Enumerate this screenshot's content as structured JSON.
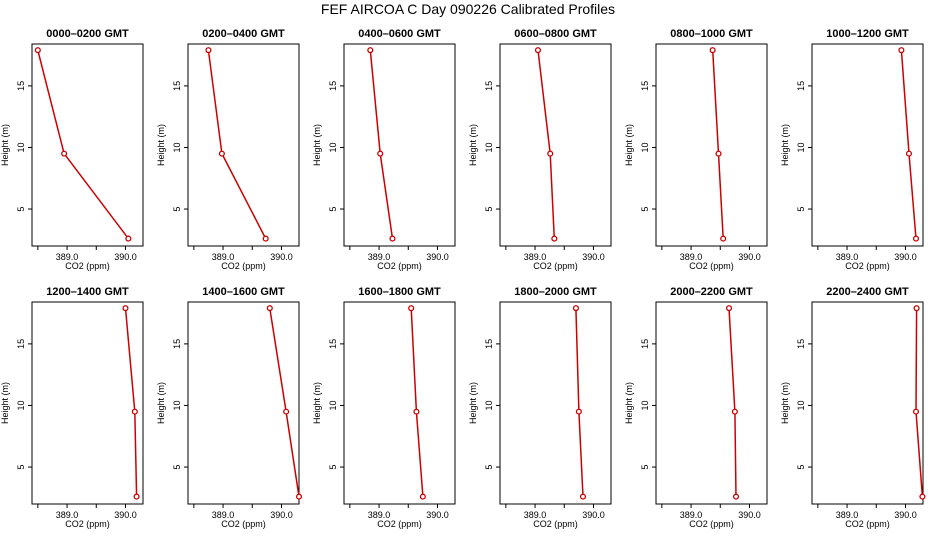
{
  "title": "FEF AIRCOA C  Day 090226  Calibrated Profiles",
  "chart_data": [
    {
      "type": "line",
      "title": "0000–0200 GMT",
      "xlabel": "CO2 (ppm)",
      "ylabel": "Height (m)",
      "xlim": [
        388.4,
        390.3
      ],
      "ylim": [
        2,
        18.4
      ],
      "xticks": [
        389.0,
        390.0
      ],
      "xtick_labels": [
        "389.0",
        "390.0"
      ],
      "xtick_minor": [
        388.5,
        389.5,
        390.5
      ],
      "yticks": [
        5,
        10,
        15
      ],
      "y": [
        17.9,
        9.5,
        2.6
      ],
      "x": [
        388.5,
        388.95,
        390.05
      ]
    },
    {
      "type": "line",
      "title": "0200–0400 GMT",
      "xlabel": "CO2 (ppm)",
      "ylabel": "Height (m)",
      "xlim": [
        388.4,
        390.3
      ],
      "ylim": [
        2,
        18.4
      ],
      "xticks": [
        389.0,
        390.0
      ],
      "xtick_labels": [
        "389.0",
        "390.0"
      ],
      "xtick_minor": [
        388.5,
        389.5,
        390.5
      ],
      "yticks": [
        5,
        10,
        15
      ],
      "y": [
        17.9,
        9.5,
        2.6
      ],
      "x": [
        388.75,
        388.98,
        389.73
      ]
    },
    {
      "type": "line",
      "title": "0400–0600 GMT",
      "xlabel": "CO2 (ppm)",
      "ylabel": "Height (m)",
      "xlim": [
        388.4,
        390.3
      ],
      "ylim": [
        2,
        18.4
      ],
      "xticks": [
        389.0,
        390.0
      ],
      "xtick_labels": [
        "389.0",
        "390.0"
      ],
      "xtick_minor": [
        388.5,
        389.5,
        390.5
      ],
      "yticks": [
        5,
        10,
        15
      ],
      "y": [
        17.9,
        9.5,
        2.6
      ],
      "x": [
        388.85,
        389.02,
        389.23
      ]
    },
    {
      "type": "line",
      "title": "0600–0800 GMT",
      "xlabel": "CO2 (ppm)",
      "ylabel": "Height (m)",
      "xlim": [
        388.4,
        390.3
      ],
      "ylim": [
        2,
        18.4
      ],
      "xticks": [
        389.0,
        390.0
      ],
      "xtick_labels": [
        "389.0",
        "390.0"
      ],
      "xtick_minor": [
        388.5,
        389.5,
        390.5
      ],
      "yticks": [
        5,
        10,
        15
      ],
      "y": [
        17.9,
        9.5,
        2.6
      ],
      "x": [
        389.05,
        389.26,
        389.33
      ]
    },
    {
      "type": "line",
      "title": "0800–1000 GMT",
      "xlabel": "CO2 (ppm)",
      "ylabel": "Height (m)",
      "xlim": [
        388.4,
        390.3
      ],
      "ylim": [
        2,
        18.4
      ],
      "xticks": [
        389.0,
        390.0
      ],
      "xtick_labels": [
        "389.0",
        "390.0"
      ],
      "xtick_minor": [
        388.5,
        389.5,
        390.5
      ],
      "yticks": [
        5,
        10,
        15
      ],
      "y": [
        17.9,
        9.5,
        2.6
      ],
      "x": [
        389.37,
        389.47,
        389.55
      ]
    },
    {
      "type": "line",
      "title": "1000–1200 GMT",
      "xlabel": "CO2 (ppm)",
      "ylabel": "Height (m)",
      "xlim": [
        388.4,
        390.3
      ],
      "ylim": [
        2,
        18.4
      ],
      "xticks": [
        389.0,
        390.0
      ],
      "xtick_labels": [
        "389.0",
        "390.0"
      ],
      "xtick_minor": [
        388.5,
        389.5,
        390.5
      ],
      "yticks": [
        5,
        10,
        15
      ],
      "y": [
        17.9,
        9.5,
        2.6
      ],
      "x": [
        389.93,
        390.06,
        390.18
      ]
    },
    {
      "type": "line",
      "title": "1200–1400 GMT",
      "xlabel": "CO2 (ppm)",
      "ylabel": "Height (m)",
      "xlim": [
        388.4,
        390.3
      ],
      "ylim": [
        2,
        18.4
      ],
      "xticks": [
        389.0,
        390.0
      ],
      "xtick_labels": [
        "389.0",
        "390.0"
      ],
      "xtick_minor": [
        388.5,
        389.5,
        390.5
      ],
      "yticks": [
        5,
        10,
        15
      ],
      "y": [
        17.9,
        9.5,
        2.6
      ],
      "x": [
        390.0,
        390.16,
        390.19
      ]
    },
    {
      "type": "line",
      "title": "1400–1600 GMT",
      "xlabel": "CO2 (ppm)",
      "ylabel": "Height (m)",
      "xlim": [
        388.4,
        390.3
      ],
      "ylim": [
        2,
        18.4
      ],
      "xticks": [
        389.0,
        390.0
      ],
      "xtick_labels": [
        "389.0",
        "390.0"
      ],
      "xtick_minor": [
        388.5,
        389.5,
        390.5
      ],
      "yticks": [
        5,
        10,
        15
      ],
      "y": [
        17.9,
        9.5,
        2.6
      ],
      "x": [
        389.8,
        390.08,
        390.3
      ]
    },
    {
      "type": "line",
      "title": "1600–1800 GMT",
      "xlabel": "CO2 (ppm)",
      "ylabel": "Height (m)",
      "xlim": [
        388.4,
        390.3
      ],
      "ylim": [
        2,
        18.4
      ],
      "xticks": [
        389.0,
        390.0
      ],
      "xtick_labels": [
        "389.0",
        "390.0"
      ],
      "xtick_minor": [
        388.5,
        389.5,
        390.5
      ],
      "yticks": [
        5,
        10,
        15
      ],
      "y": [
        17.9,
        9.5,
        2.6
      ],
      "x": [
        389.55,
        389.64,
        389.75
      ]
    },
    {
      "type": "line",
      "title": "1800–2000 GMT",
      "xlabel": "CO2 (ppm)",
      "ylabel": "Height (m)",
      "xlim": [
        388.4,
        390.3
      ],
      "ylim": [
        2,
        18.4
      ],
      "xticks": [
        389.0,
        390.0
      ],
      "xtick_labels": [
        "389.0",
        "390.0"
      ],
      "xtick_minor": [
        388.5,
        389.5,
        390.5
      ],
      "yticks": [
        5,
        10,
        15
      ],
      "y": [
        17.9,
        9.5,
        2.6
      ],
      "x": [
        389.7,
        389.75,
        389.82
      ]
    },
    {
      "type": "line",
      "title": "2000–2200 GMT",
      "xlabel": "CO2 (ppm)",
      "ylabel": "Height (m)",
      "xlim": [
        388.4,
        390.3
      ],
      "ylim": [
        2,
        18.4
      ],
      "xticks": [
        389.0,
        390.0
      ],
      "xtick_labels": [
        "389.0",
        "390.0"
      ],
      "xtick_minor": [
        388.5,
        389.5,
        390.5
      ],
      "yticks": [
        5,
        10,
        15
      ],
      "y": [
        17.9,
        9.5,
        2.6
      ],
      "x": [
        389.65,
        389.75,
        389.77
      ]
    },
    {
      "type": "line",
      "title": "2200–2400 GMT",
      "xlabel": "CO2 (ppm)",
      "ylabel": "Height (m)",
      "xlim": [
        388.4,
        390.3
      ],
      "ylim": [
        2,
        18.4
      ],
      "xticks": [
        389.0,
        390.0
      ],
      "xtick_labels": [
        "389.0",
        "390.0"
      ],
      "xtick_minor": [
        388.5,
        389.5,
        390.5
      ],
      "yticks": [
        5,
        10,
        15
      ],
      "y": [
        17.9,
        9.5,
        2.6
      ],
      "x": [
        390.19,
        390.18,
        390.29
      ]
    }
  ],
  "style": {
    "line_color": "#cc0000",
    "marker_color": "#cc0000",
    "axis_color": "#000000"
  }
}
